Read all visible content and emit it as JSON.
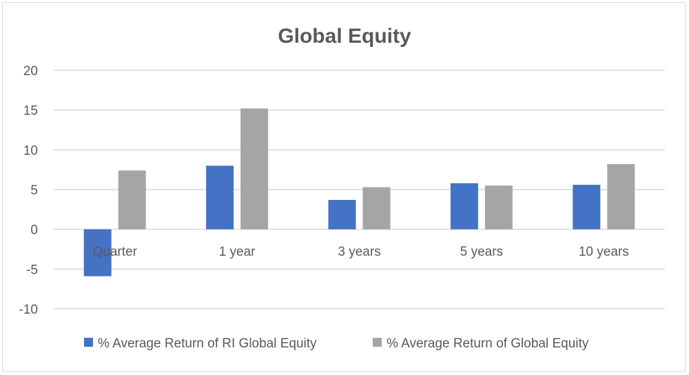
{
  "chart_data": {
    "type": "bar",
    "title": "Global Equity",
    "xlabel": "",
    "ylabel": "",
    "categories": [
      "Quarter",
      "1 year",
      "3 years",
      "5 years",
      "10 years"
    ],
    "series": [
      {
        "name": "% Average Return of RI Global Equity",
        "color": "#4472c4",
        "values": [
          -5.9,
          8.0,
          3.7,
          5.8,
          5.6
        ]
      },
      {
        "name": "% Average Return of Global Equity",
        "color": "#a5a5a5",
        "values": [
          7.4,
          15.2,
          5.3,
          5.5,
          8.2
        ]
      }
    ],
    "ylim": [
      -10,
      20
    ],
    "yticks": [
      20,
      15,
      10,
      5,
      0,
      -5,
      -10
    ],
    "grid": true,
    "legend_position": "bottom"
  }
}
